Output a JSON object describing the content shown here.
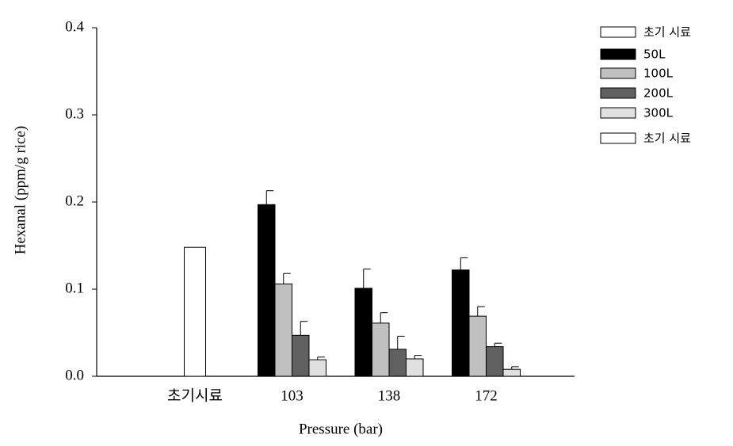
{
  "chart_data": {
    "type": "bar",
    "x_label": "Pressure (bar)",
    "y_label": "Hexanal (ppm/g rice)",
    "categories": [
      "초기시료",
      "103",
      "138",
      "172"
    ],
    "series": [
      {
        "name": "초기 시료",
        "color": "#ffffff",
        "values": [
          0.148,
          null,
          null,
          null
        ],
        "errors": [
          null,
          null,
          null,
          null
        ]
      },
      {
        "name": "50L",
        "color": "#000000",
        "values": [
          null,
          0.197,
          0.101,
          0.122
        ],
        "errors": [
          null,
          0.016,
          0.022,
          0.014
        ]
      },
      {
        "name": "100L",
        "color": "#c0c0c0",
        "values": [
          null,
          0.106,
          0.061,
          0.069
        ],
        "errors": [
          null,
          0.012,
          0.012,
          0.011
        ]
      },
      {
        "name": "200L",
        "color": "#606060",
        "values": [
          null,
          0.047,
          0.031,
          0.034
        ],
        "errors": [
          null,
          0.016,
          0.015,
          0.004
        ]
      },
      {
        "name": "300L",
        "color": "#e0e0e0",
        "values": [
          null,
          0.019,
          0.02,
          0.008
        ],
        "errors": [
          null,
          0.003,
          0.004,
          0.003
        ]
      },
      {
        "name": "초기 시료",
        "color": "#ffffff",
        "values": [
          null,
          null,
          null,
          null
        ],
        "errors": [
          null,
          null,
          null,
          null
        ]
      }
    ],
    "ylim": [
      0,
      0.4
    ],
    "yticks": [
      {
        "value": 0,
        "label": "0.0"
      },
      0.1,
      0.2,
      0.3,
      0.4
    ],
    "grid": false
  }
}
